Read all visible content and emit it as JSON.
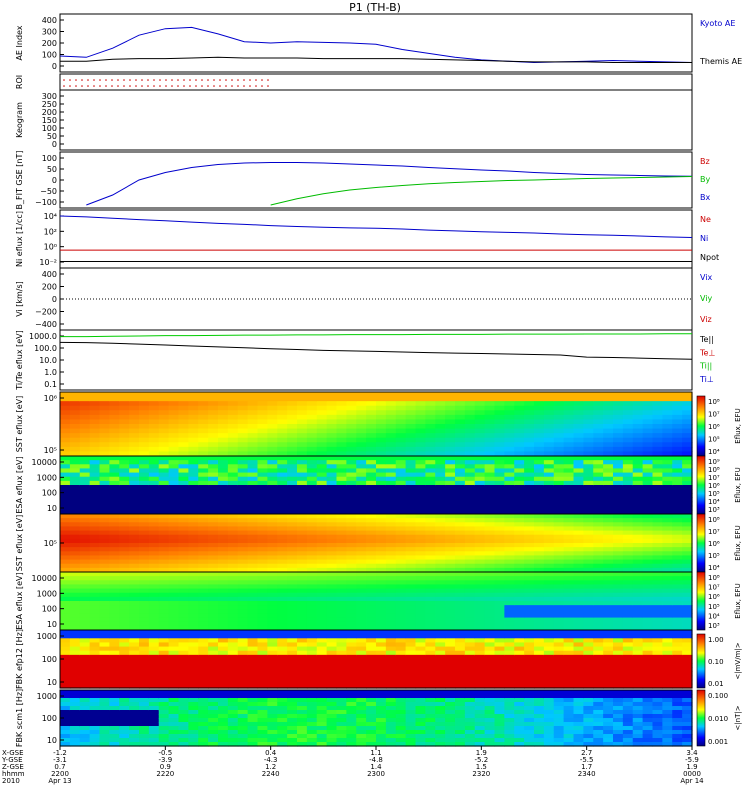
{
  "title": "P1 (TH-B)",
  "colors": {
    "kyoto": "#0000cc",
    "themis": "#000000",
    "bz": "#cc0000",
    "by": "#00bb00",
    "bx": "#0000cc",
    "ne": "#cc0000",
    "ni": "#0000cc",
    "npot": "#000000",
    "te": "#00cc00",
    "ti": "#000000"
  },
  "panels": [
    {
      "key": "ae",
      "ylabel": "AE Index",
      "ticks": [
        "400",
        "300",
        "200",
        "100",
        "0"
      ],
      "legend": [
        "Kyoto AE",
        "Themis AE"
      ]
    },
    {
      "key": "roi",
      "ylabel": "ROI",
      "ticks": [],
      "legend": []
    },
    {
      "key": "keogram",
      "ylabel": "Keogram",
      "ticks": [
        "300",
        "250",
        "200",
        "150",
        "100",
        "50",
        "0"
      ],
      "legend": []
    },
    {
      "key": "bfit",
      "ylabel": "B_FIT GSE [nT]",
      "ticks": [
        "100",
        "50",
        "0",
        "−50",
        "−100"
      ],
      "legend": [
        "Bz",
        "By",
        "Bx"
      ]
    },
    {
      "key": "ni",
      "ylabel": "Ni eflux [1/cc]",
      "ticks": [
        "10⁴",
        "10²",
        "10⁰",
        "10⁻²"
      ],
      "legend": [
        "Ne",
        "Ni",
        "Npot"
      ]
    },
    {
      "key": "vi",
      "ylabel": "Vi [km/s]",
      "ticks": [
        "400",
        "200",
        "0",
        "−200",
        "−400"
      ],
      "legend": [
        "Vix",
        "Viy",
        "Viz"
      ]
    },
    {
      "key": "te",
      "ylabel": "Ti/Te eflux [eV]",
      "ticks": [
        "1000.0",
        "100.0",
        "10.0",
        "1.0",
        "0.1"
      ],
      "legend": [
        "Te||",
        "Te⊥",
        "Ti||",
        "Ti⊥"
      ]
    },
    {
      "key": "sst_e",
      "ylabel": "SST eflux [eV]",
      "ticks": [
        "10⁶",
        "10⁵"
      ],
      "legend": []
    },
    {
      "key": "esa_e",
      "ylabel": "ESA eflux [eV]",
      "ticks": [
        "10000",
        "1000",
        "100",
        "10"
      ],
      "legend": []
    },
    {
      "key": "sst_i",
      "ylabel": "SST eflux [eV]",
      "ticks": [
        "10⁵"
      ],
      "legend": []
    },
    {
      "key": "esa_i",
      "ylabel": "ESA eflux [eV]",
      "ticks": [
        "10000",
        "1000",
        "100",
        "10"
      ],
      "legend": []
    },
    {
      "key": "fbk1",
      "ylabel": "FBK efp12 [Hz]",
      "ticks": [
        "1000",
        "100",
        "10"
      ],
      "legend": []
    },
    {
      "key": "fbk2",
      "ylabel": "FBK scm1 [Hz]",
      "ticks": [
        "1000",
        "100",
        "10"
      ],
      "legend": []
    }
  ],
  "colorbars": [
    {
      "label": "Eflux, EFU",
      "ticks": [
        "10⁸",
        "10⁷",
        "10⁶",
        "10⁵",
        "10⁴"
      ]
    },
    {
      "label": "Eflux, EFU",
      "ticks": [
        "10⁹",
        "10⁸",
        "10⁷",
        "10⁶",
        "10⁵",
        "10⁴",
        "10³"
      ]
    },
    {
      "label": "Eflux, EFU",
      "ticks": [
        "10⁸",
        "10⁷",
        "10⁶",
        "10⁵",
        "10⁴"
      ]
    },
    {
      "label": "Eflux, EFU",
      "ticks": [
        "10⁸",
        "10⁷",
        "10⁶",
        "10⁵",
        "10⁴",
        "10³"
      ]
    },
    {
      "label": "<|mV/m|>",
      "ticks": [
        "1.00",
        "0.10",
        "0.01"
      ]
    },
    {
      "label": "<|nT|>",
      "ticks": [
        "0.100",
        "0.010",
        "0.001"
      ]
    }
  ],
  "xaxis": {
    "row_labels": [
      "X-GSE",
      "Y-GSE",
      "Z-GSE",
      "hhmm",
      "2010"
    ],
    "columns": [
      {
        "x": "-1.2",
        "y": "-3.1",
        "z": "0.7",
        "hhmm": "2200",
        "date": "Apr 13"
      },
      {
        "x": "-0.5",
        "y": "-3.9",
        "z": "0.9",
        "hhmm": "2220",
        "date": ""
      },
      {
        "x": "0.4",
        "y": "-4.3",
        "z": "1.2",
        "hhmm": "2240",
        "date": ""
      },
      {
        "x": "1.1",
        "y": "-4.8",
        "z": "1.4",
        "hhmm": "2300",
        "date": ""
      },
      {
        "x": "1.9",
        "y": "-5.2",
        "z": "1.5",
        "hhmm": "2320",
        "date": ""
      },
      {
        "x": "2.7",
        "y": "-5.5",
        "z": "1.7",
        "hhmm": "2340",
        "date": ""
      },
      {
        "x": "3.4",
        "y": "-5.9",
        "z": "1.9",
        "hhmm": "0000",
        "date": "Apr 14"
      }
    ]
  },
  "chart_data": {
    "type": "line",
    "title": "P1 (TH-B)",
    "x_minutes_since_2200": [
      0,
      5,
      10,
      15,
      20,
      25,
      30,
      35,
      40,
      45,
      50,
      55,
      60,
      65,
      70,
      75,
      80,
      85,
      90,
      95,
      100,
      105,
      110,
      115,
      120
    ],
    "series": [
      {
        "name": "Kyoto AE",
        "panel": "ae",
        "values": [
          100,
          90,
          160,
          260,
          310,
          320,
          270,
          210,
          200,
          210,
          205,
          200,
          190,
          150,
          120,
          90,
          70,
          60,
          50,
          55,
          60,
          65,
          60,
          55,
          50
        ]
      },
      {
        "name": "Themis AE",
        "panel": "ae",
        "values": [
          60,
          60,
          75,
          80,
          80,
          85,
          90,
          85,
          85,
          85,
          80,
          80,
          80,
          80,
          75,
          70,
          65,
          60,
          55,
          55,
          55,
          50,
          50,
          50,
          50
        ]
      },
      {
        "name": "Bx",
        "panel": "bfit",
        "values": [
          -200,
          -140,
          -60,
          0,
          30,
          50,
          62,
          68,
          70,
          70,
          68,
          64,
          60,
          56,
          50,
          45,
          40,
          36,
          30,
          26,
          22,
          20,
          18,
          16,
          15
        ]
      },
      {
        "name": "By",
        "panel": "bfit",
        "values": [
          -200,
          -200,
          -200,
          -200,
          -200,
          -200,
          -200,
          -200,
          -100,
          -75,
          -55,
          -40,
          -30,
          -22,
          -15,
          -10,
          -6,
          -2,
          0,
          3,
          6,
          8,
          10,
          12,
          14
        ]
      },
      {
        "name": "Ne",
        "panel": "ni",
        "values": [
          1,
          1,
          1,
          1,
          1,
          1,
          1,
          1,
          1,
          1,
          1,
          1,
          1,
          1,
          1,
          1,
          1,
          1,
          1,
          1,
          1,
          1,
          1,
          1,
          1
        ]
      },
      {
        "name": "Ni",
        "panel": "ni",
        "values": [
          40000,
          30000,
          20000,
          13000,
          9000,
          6000,
          4000,
          3000,
          2000,
          1500,
          1200,
          1000,
          900,
          700,
          500,
          400,
          300,
          250,
          200,
          150,
          120,
          100,
          80,
          60,
          50
        ]
      },
      {
        "name": "Npot",
        "panel": "ni",
        "values": [
          0.03,
          0.03,
          0.03,
          0.03,
          0.03,
          0.03,
          0.03,
          0.03,
          0.03,
          0.03,
          0.03,
          0.03,
          0.03,
          0.03,
          0.03,
          0.03,
          0.03,
          0.03,
          0.03,
          0.03,
          0.03,
          0.03,
          0.03,
          0.03,
          0.03
        ]
      },
      {
        "name": "Te||",
        "panel": "te",
        "values": [
          1500,
          1500,
          1600,
          1700,
          1800,
          1800,
          1900,
          2000,
          2000,
          2100,
          2100,
          2200,
          2200,
          2200,
          2300,
          2300,
          2300,
          2400,
          2400,
          2400,
          2500,
          2500,
          2500,
          2600,
          2600
        ]
      },
      {
        "name": "Ti||",
        "panel": "te",
        "values": [
          500,
          480,
          420,
          360,
          300,
          250,
          210,
          180,
          150,
          130,
          110,
          100,
          90,
          80,
          70,
          65,
          60,
          55,
          50,
          45,
          30,
          28,
          25,
          22,
          20
        ]
      }
    ],
    "ylim": {
      "ae": [
        0,
        400
      ],
      "bfit": [
        -100,
        100
      ],
      "ni": [
        0.01,
        100000
      ],
      "vi": [
        -400,
        400
      ],
      "te": [
        0.1,
        3000
      ]
    }
  }
}
